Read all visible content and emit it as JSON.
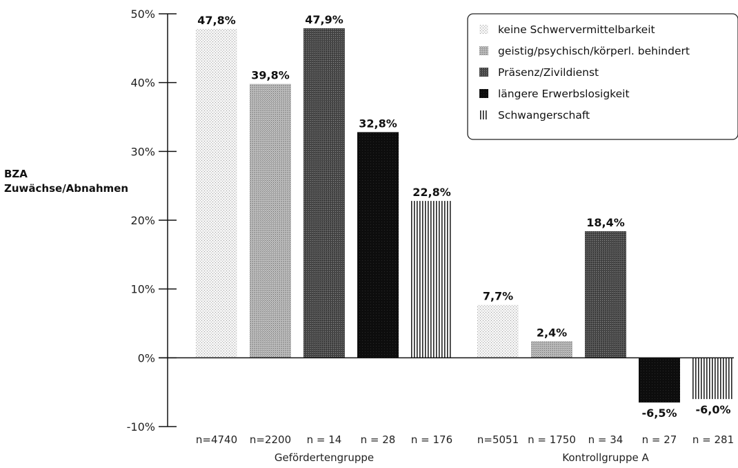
{
  "chart_data": {
    "type": "bar",
    "ylabel_lines": [
      "BZA",
      "Zuwächse/Abnahmen"
    ],
    "ylim": [
      -10,
      50
    ],
    "yticks": [
      50,
      40,
      30,
      20,
      10,
      0,
      -10
    ],
    "ytick_labels": [
      "50%",
      "40%",
      "30%",
      "20%",
      "10%",
      "0%",
      "-10%"
    ],
    "grid": false,
    "legend_position": "top-right",
    "series": [
      {
        "name": "keine Schwervermittelbarkeit",
        "pattern": "dots-light"
      },
      {
        "name": "geistig/psychisch/körperl. behindert",
        "pattern": "dots-medium"
      },
      {
        "name": "Präsenz/Zivildienst",
        "pattern": "dots-dark"
      },
      {
        "name": "längere Erwerbslosigkeit",
        "pattern": "solid-black"
      },
      {
        "name": "Schwangerschaft",
        "pattern": "vertical-stripes"
      }
    ],
    "groups": [
      {
        "name": "Gefördertengruppe",
        "bars": [
          {
            "series": 0,
            "value": 47.8,
            "label": "47,8%",
            "n": "n=4740"
          },
          {
            "series": 1,
            "value": 39.8,
            "label": "39,8%",
            "n": "n=2200"
          },
          {
            "series": 2,
            "value": 47.9,
            "label": "47,9%",
            "n": "n = 14"
          },
          {
            "series": 3,
            "value": 32.8,
            "label": "32,8%",
            "n": "n = 28"
          },
          {
            "series": 4,
            "value": 22.8,
            "label": "22,8%",
            "n": "n = 176"
          }
        ]
      },
      {
        "name": "Kontrollgruppe A",
        "bars": [
          {
            "series": 0,
            "value": 7.7,
            "label": "7,7%",
            "n": "n=5051"
          },
          {
            "series": 1,
            "value": 2.4,
            "label": "2,4%",
            "n": "n = 1750"
          },
          {
            "series": 2,
            "value": 18.4,
            "label": "18,4%",
            "n": "n = 34"
          },
          {
            "series": 3,
            "value": -6.5,
            "label": "-6,5%",
            "n": "n = 27"
          },
          {
            "series": 4,
            "value": -6.0,
            "label": "-6,0%",
            "n": "n = 281"
          }
        ]
      }
    ]
  }
}
